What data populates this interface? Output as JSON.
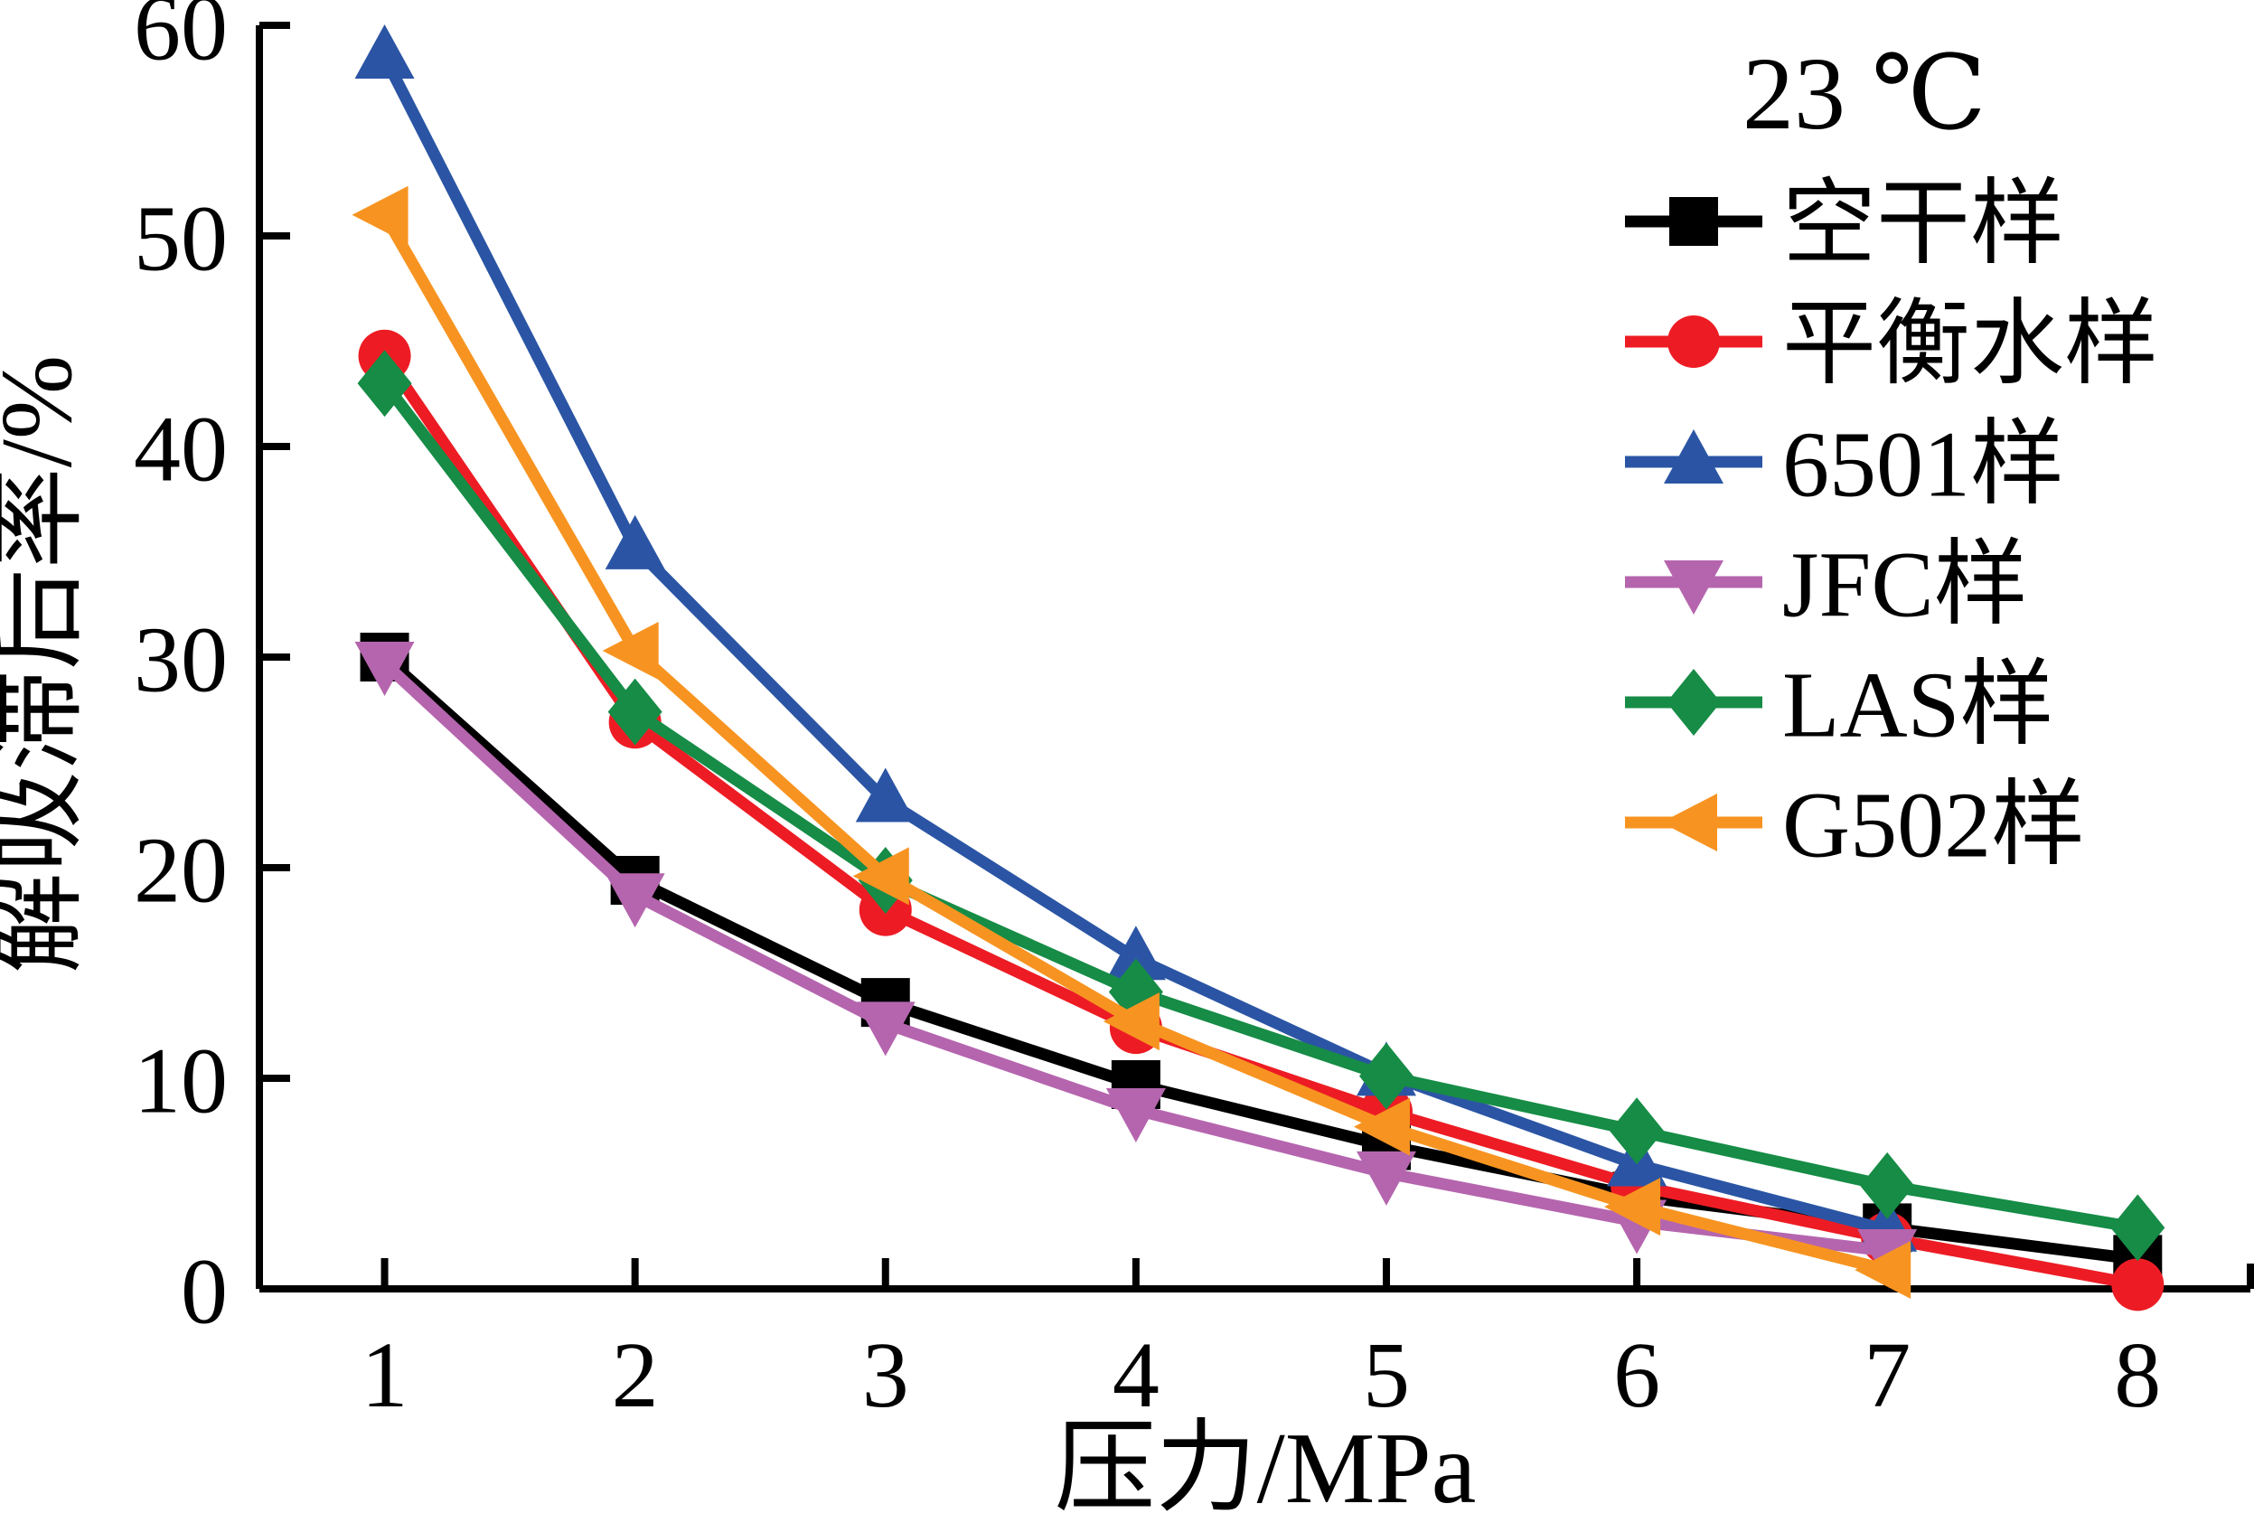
{
  "chart_data": {
    "type": "line",
    "title": "",
    "xlabel": "压力/MPa",
    "ylabel": "解吸滞后率/%",
    "legend_title": "23 ℃",
    "legend_position": "top-right",
    "grid": false,
    "xlim": [
      0.5,
      8.45
    ],
    "ylim": [
      0,
      60
    ],
    "x_ticks": [
      1,
      2,
      3,
      4,
      5,
      6,
      7,
      8
    ],
    "y_ticks": [
      0,
      10,
      20,
      30,
      40,
      50,
      60
    ],
    "axis_color": "#000000",
    "series": [
      {
        "name": "空干样",
        "color": "#000000",
        "marker": "square",
        "x": [
          1,
          2,
          3,
          4,
          5,
          6,
          7,
          8
        ],
        "values": [
          30.0,
          19.4,
          13.6,
          9.7,
          6.8,
          4.4,
          2.9,
          1.4
        ]
      },
      {
        "name": "平衡水样",
        "color": "#ed1c24",
        "marker": "circle",
        "x": [
          1,
          2,
          3,
          4,
          5,
          6,
          7,
          8
        ],
        "values": [
          44.3,
          26.9,
          18.0,
          12.4,
          8.4,
          4.9,
          2.4,
          0.2
        ]
      },
      {
        "name": "6501样",
        "color": "#2b55a4",
        "marker": "triangle-up",
        "x": [
          1,
          2,
          3,
          4,
          5,
          6,
          7
        ],
        "values": [
          58.5,
          35.2,
          23.2,
          15.7,
          10.2,
          5.9,
          2.8
        ]
      },
      {
        "name": "JFC样",
        "color": "#b565ae",
        "marker": "triangle-down",
        "x": [
          1,
          2,
          3,
          4,
          5,
          6,
          7
        ],
        "values": [
          29.7,
          18.7,
          12.6,
          8.5,
          5.5,
          3.2,
          1.8
        ]
      },
      {
        "name": "LAS样",
        "color": "#168c46",
        "marker": "diamond",
        "x": [
          1,
          2,
          3,
          4,
          5,
          6,
          7,
          8
        ],
        "values": [
          43.0,
          27.4,
          19.4,
          14.1,
          10.1,
          7.5,
          4.9,
          2.9
        ]
      },
      {
        "name": "G502样",
        "color": "#f79421",
        "marker": "triangle-left",
        "x": [
          1,
          2,
          3,
          4,
          5,
          6,
          7
        ],
        "values": [
          51.0,
          30.3,
          19.6,
          12.7,
          7.7,
          3.9,
          0.9
        ]
      }
    ]
  }
}
